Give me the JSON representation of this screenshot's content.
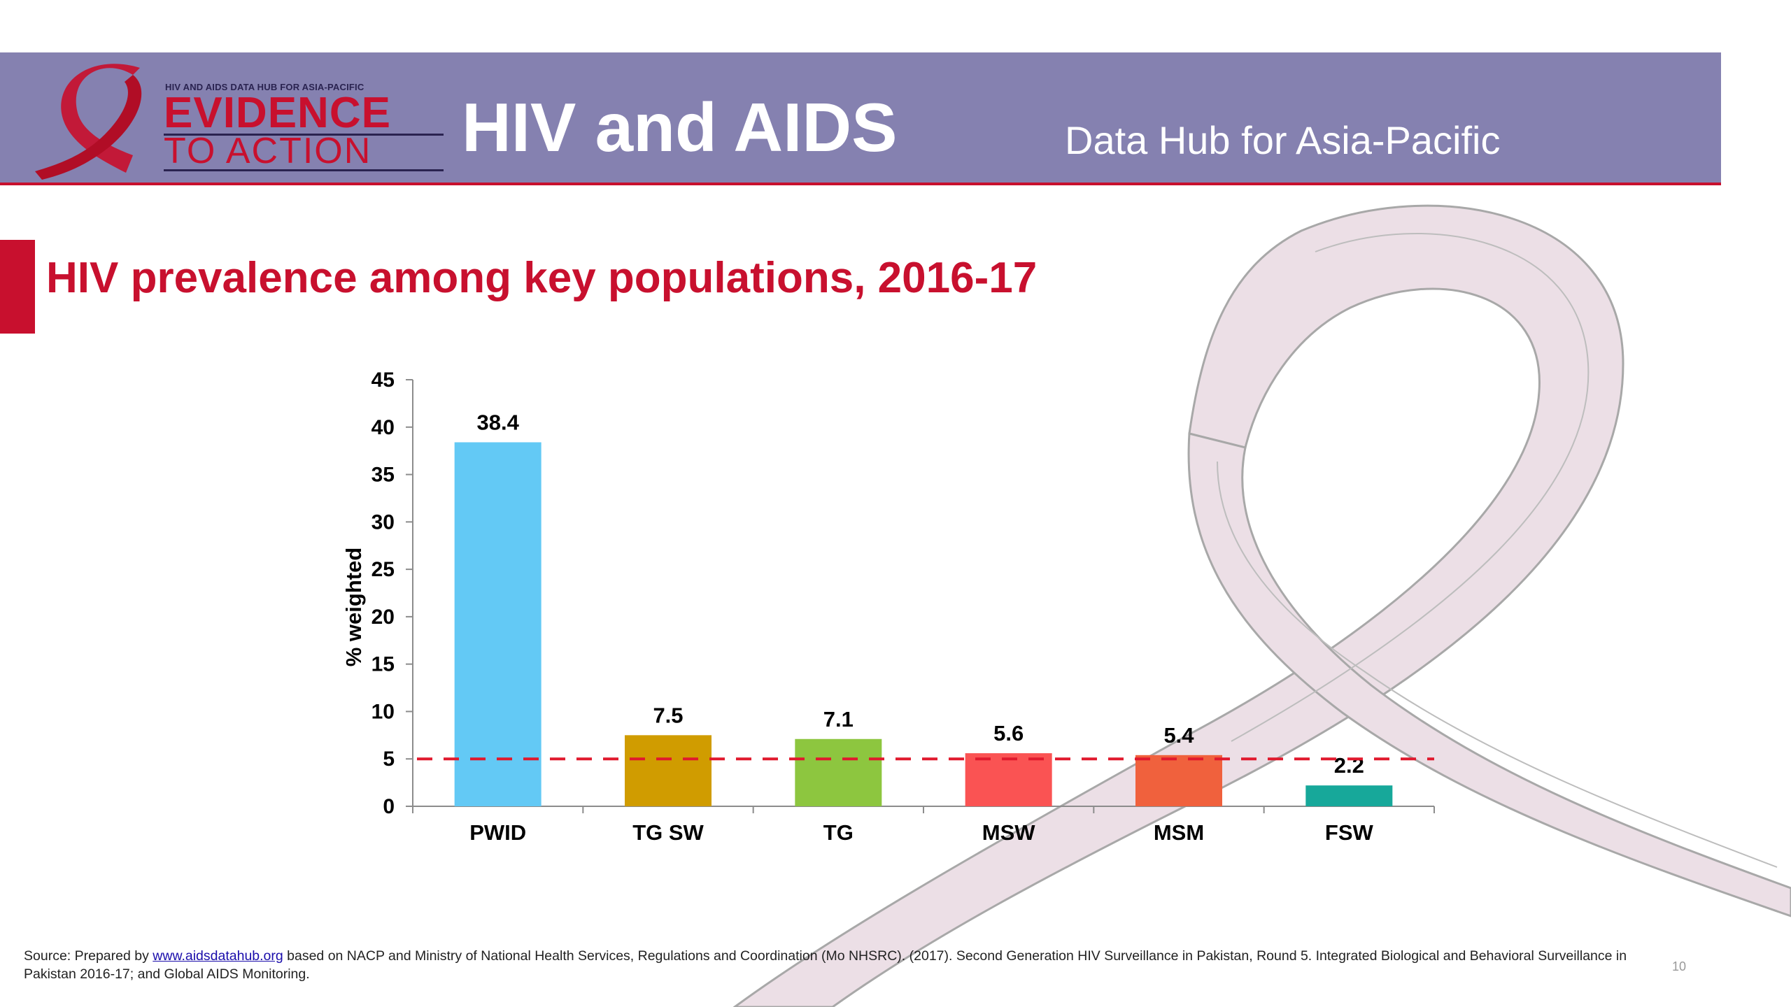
{
  "header": {
    "logo_small": "HIV AND AIDS DATA HUB FOR ASIA-PACIFIC",
    "logo_evidence": "EVIDENCE",
    "logo_action": "TO ACTION",
    "title": "HIV and AIDS",
    "subtitle": "Data Hub for Asia-Pacific"
  },
  "slide": {
    "title": "HIV prevalence among key populations, 2016-17"
  },
  "colors": {
    "header_band": "#8581b0",
    "accent": "#c8102e",
    "ribbon_fill": "#ecdfe6",
    "ribbon_stroke": "#a8a8a8"
  },
  "chart_data": {
    "type": "bar",
    "categories": [
      "PWID",
      "TG SW",
      "TG",
      "MSW",
      "MSM",
      "FSW"
    ],
    "values": [
      38.4,
      7.5,
      7.1,
      5.6,
      5.4,
      2.2
    ],
    "value_labels": [
      "38.4",
      "7.5",
      "7.1",
      "5.6",
      "5.4",
      "2.2"
    ],
    "colors": [
      "#63c9f5",
      "#d09c00",
      "#8dc63f",
      "#fa5353",
      "#f0613d",
      "#17a89a"
    ],
    "ylabel": "% weighted",
    "ylim": [
      0,
      45
    ],
    "yticks": [
      0,
      5,
      10,
      15,
      20,
      25,
      30,
      35,
      40,
      45
    ],
    "reference_line": {
      "value": 5,
      "style": "dashed",
      "color": "#e0192d"
    },
    "grid": false,
    "legend": "none"
  },
  "footer": {
    "source_prefix": "Source: Prepared by ",
    "source_link": "www.aidsdatahub.org",
    "source_rest": "  based on NACP and Ministry of National Health Services, Regulations and Coordination (Mo NHSRC). (2017). Second Generation HIV Surveillance in Pakistan, Round 5. Integrated Biological and Behavioral Surveillance in Pakistan 2016-17; and Global AIDS Monitoring.",
    "page_number": "10"
  }
}
